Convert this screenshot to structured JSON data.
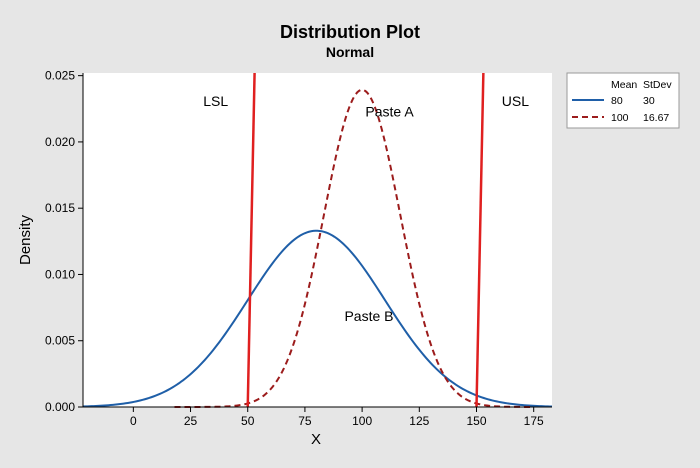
{
  "chart_data": {
    "type": "line",
    "title": "Distribution Plot",
    "subtitle": "Normal",
    "xlabel": "X",
    "ylabel": "Density",
    "xlim": [
      -22,
      183
    ],
    "ylim": [
      0,
      0.0252
    ],
    "xticks": [
      0,
      25,
      50,
      75,
      100,
      125,
      150,
      175
    ],
    "yticks": [
      "0.000",
      "0.005",
      "0.010",
      "0.015",
      "0.020",
      "0.025"
    ],
    "yticks_values": [
      0,
      0.005,
      0.01,
      0.015,
      0.02,
      0.025
    ],
    "grid": false,
    "legend_position": "right",
    "legend": {
      "headers": [
        "Mean",
        "StDev"
      ],
      "entries": [
        {
          "mean": "80",
          "stdev": "30",
          "color": "#1f5fa8",
          "style": "solid"
        },
        {
          "mean": "100",
          "stdev": "16.67",
          "color": "#9c1c1c",
          "style": "dashed"
        }
      ]
    },
    "series": [
      {
        "mean": 80,
        "stdev": 30,
        "color": "#1f5fa8",
        "style": "solid",
        "xmin": -22,
        "xmax": 183
      },
      {
        "mean": 100,
        "stdev": 16.67,
        "color": "#9c1c1c",
        "style": "dashed",
        "xmin": 18,
        "xmax": 175
      }
    ],
    "reference_lines": [
      {
        "label": "LSL",
        "x_bottom": 50,
        "x_top": 53,
        "color": "#e02020"
      },
      {
        "label": "USL",
        "x_bottom": 150,
        "x_top": 153,
        "color": "#e02020"
      }
    ],
    "annotations": [
      {
        "text": "LSL",
        "x": 36,
        "y": 0.0227
      },
      {
        "text": "Paste A",
        "x": 112,
        "y": 0.0219
      },
      {
        "text": "USL",
        "x": 167,
        "y": 0.0227
      },
      {
        "text": "Paste B",
        "x": 103,
        "y": 0.0065
      }
    ]
  }
}
